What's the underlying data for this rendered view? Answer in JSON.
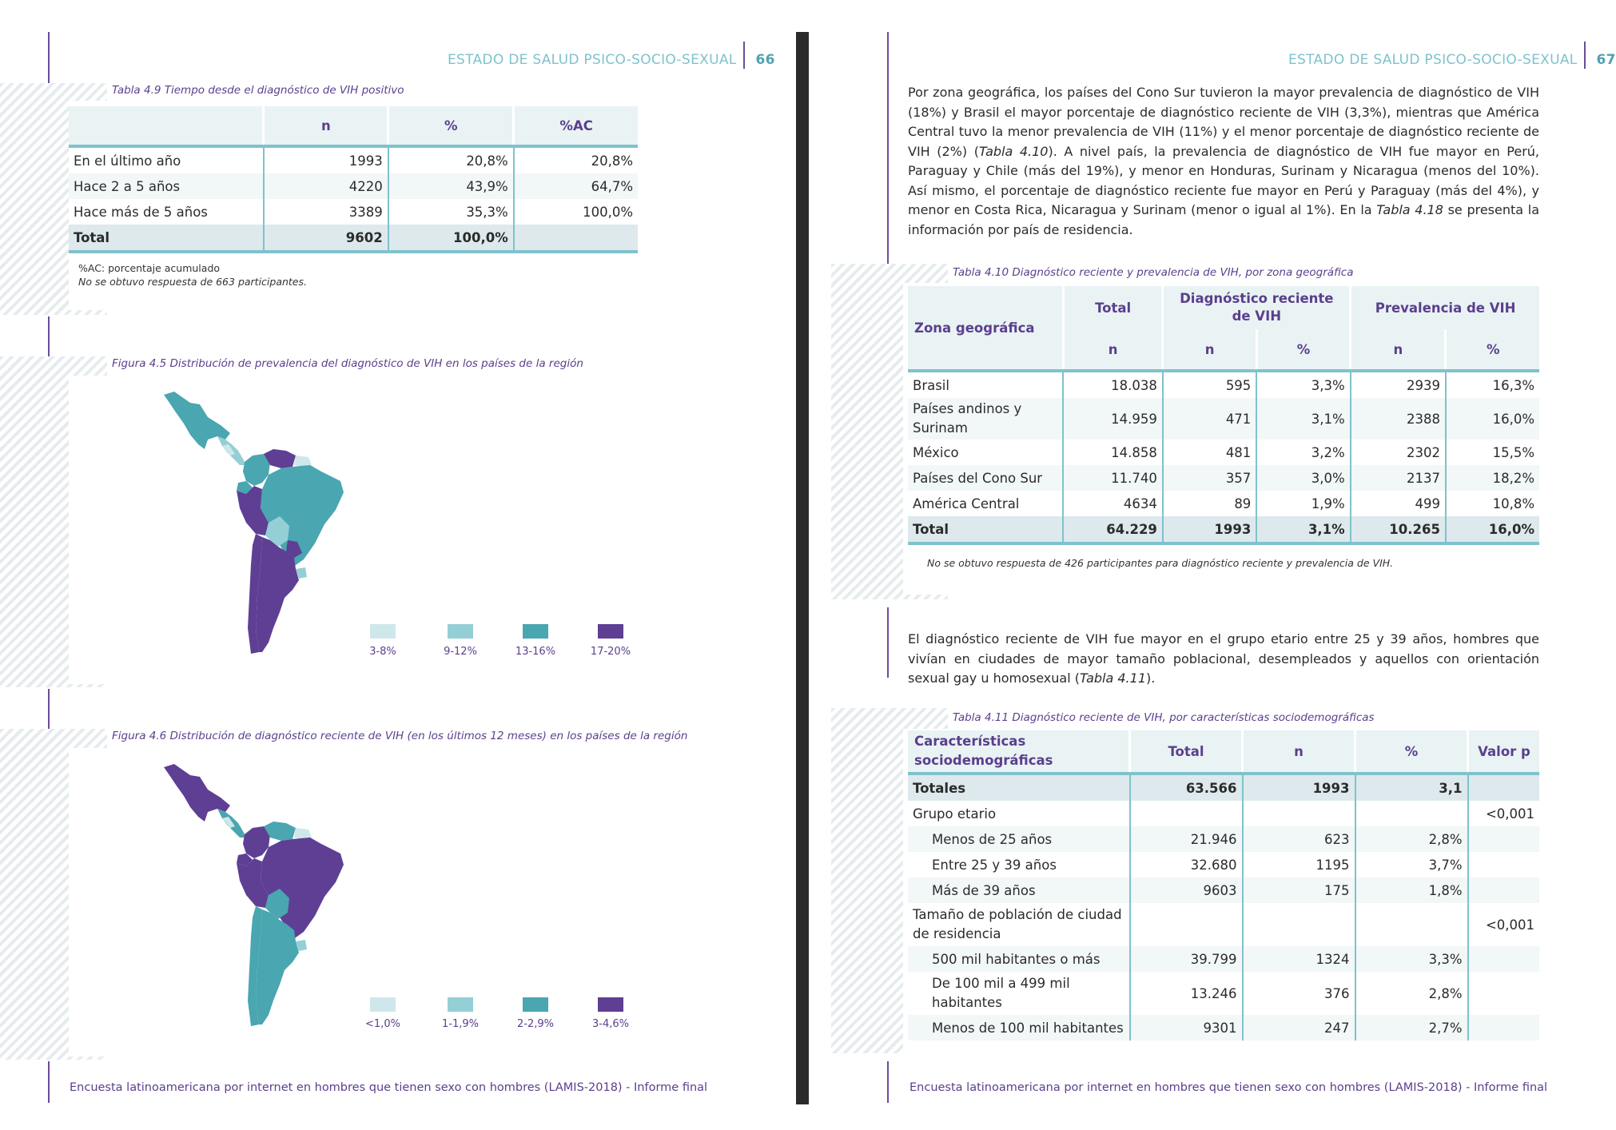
{
  "left_page": {
    "header": {
      "title": "ESTADO DE SALUD PSICO-SOCIO-SEXUAL",
      "page": "66"
    },
    "table49": {
      "caption": "Tabla 4.9 Tiempo desde el diagnóstico de VIH positivo",
      "headers": [
        "",
        "n",
        "%",
        "%AC"
      ],
      "rows": [
        [
          "En el último año",
          "1993",
          "20,8%",
          "20,8%"
        ],
        [
          "Hace 2 a 5 años",
          "4220",
          "43,9%",
          "64,7%"
        ],
        [
          "Hace más de 5 años",
          "3389",
          "35,3%",
          "100,0%"
        ]
      ],
      "total": [
        "Total",
        "9602",
        "100,0%",
        ""
      ],
      "note1": "%AC: porcentaje acumulado",
      "note2": "No se obtuvo respuesta de 663 participantes."
    },
    "fig45": {
      "caption": "Figura 4.5 Distribución de prevalencia del diagnóstico de VIH en los países de la región",
      "legend": [
        {
          "label": "3-8%",
          "color": "#cfe7ea"
        },
        {
          "label": "9-12%",
          "color": "#95cfd6"
        },
        {
          "label": "13-16%",
          "color": "#4aa6b0"
        },
        {
          "label": "17-20%",
          "color": "#5e3f94"
        }
      ]
    },
    "fig46": {
      "caption": "Figura 4.6 Distribución de diagnóstico reciente de VIH (en los últimos 12 meses) en los países de la región",
      "legend": [
        {
          "label": "<1,0%",
          "color": "#cfe7ea"
        },
        {
          "label": "1-1,9%",
          "color": "#95cfd6"
        },
        {
          "label": "2-2,9%",
          "color": "#4aa6b0"
        },
        {
          "label": "3-4,6%",
          "color": "#5e3f94"
        }
      ]
    },
    "footer": "Encuesta latinoamericana por internet en hombres que tienen sexo con hombres (LAMIS-2018) - Informe final"
  },
  "right_page": {
    "header": {
      "title": "ESTADO DE SALUD PSICO-SOCIO-SEXUAL",
      "page": "67"
    },
    "para1": {
      "a": "Por zona geográfica, los países del Cono Sur tuvieron la mayor prevalencia de diagnóstico de VIH (18%) y Brasil el mayor porcentaje de diagnóstico reciente de VIH (3,3%), mientras que América Central tuvo la menor prevalencia de VIH (11%) y el menor porcentaje de diagnóstico reciente de VIH (2%) (",
      "ref1": "Tabla 4.10",
      "b": "). A nivel país, la prevalencia de diagnóstico de VIH fue mayor en Perú, Paraguay y Chile (más del 19%), y menor en Honduras, Surinam y Nicaragua (menos del 10%). Así mismo, el porcentaje de diagnóstico reciente fue mayor en Perú y Paraguay (más del 4%), y menor en Costa Rica, Nicaragua y Surinam (menor o igual al 1%). En la ",
      "ref2": "Tabla 4.18",
      "c": " se presenta la información por país de residencia."
    },
    "table410": {
      "caption": "Tabla 4.10 Diagnóstico reciente y prevalencia de VIH, por zona geográfica",
      "h_zona": "Zona geográfica",
      "h_total": "Total",
      "h_diag": "Diagnóstico reciente de VIH",
      "h_prev": "Prevalencia de VIH",
      "h_n": "n",
      "h_pct": "%",
      "rows": [
        [
          "Brasil",
          "18.038",
          "595",
          "3,3%",
          "2939",
          "16,3%"
        ],
        [
          "Países andinos y Surinam",
          "14.959",
          "471",
          "3,1%",
          "2388",
          "16,0%"
        ],
        [
          "México",
          "14.858",
          "481",
          "3,2%",
          "2302",
          "15,5%"
        ],
        [
          "Países del Cono Sur",
          "11.740",
          "357",
          "3,0%",
          "2137",
          "18,2%"
        ],
        [
          "América Central",
          "4634",
          "89",
          "1,9%",
          "499",
          "10,8%"
        ]
      ],
      "total": [
        "Total",
        "64.229",
        "1993",
        "3,1%",
        "10.265",
        "16,0%"
      ],
      "note": "No se obtuvo respuesta de 426 participantes para diagnóstico reciente y prevalencia de VIH."
    },
    "para2": {
      "a": "El diagnóstico reciente de VIH fue mayor en el grupo etario entre 25 y 39 años, hombres que vivían en ciudades de mayor tamaño poblacional, desempleados y aquellos con orientación sexual gay u homosexual (",
      "ref": "Tabla 4.11",
      "b": ")."
    },
    "table411": {
      "caption": "Tabla 4.11 Diagnóstico reciente de VIH, por características sociodemográficas",
      "headers": [
        "Características sociodemográficas",
        "Total",
        "n",
        "%",
        "Valor p"
      ],
      "totales": [
        "Totales",
        "63.566",
        "1993",
        "3,1",
        ""
      ],
      "rows": [
        {
          "label": "Grupo etario",
          "indent": false,
          "total": "",
          "n": "",
          "pct": "",
          "p": "<0,001"
        },
        {
          "label": "Menos de 25 años",
          "indent": true,
          "total": "21.946",
          "n": "623",
          "pct": "2,8%",
          "p": ""
        },
        {
          "label": "Entre 25 y 39 años",
          "indent": true,
          "total": "32.680",
          "n": "1195",
          "pct": "3,7%",
          "p": ""
        },
        {
          "label": "Más de 39 años",
          "indent": true,
          "total": "9603",
          "n": "175",
          "pct": "1,8%",
          "p": ""
        },
        {
          "label": "Tamaño de población de ciudad de residencia",
          "indent": false,
          "total": "",
          "n": "",
          "pct": "",
          "p": "<0,001"
        },
        {
          "label": "500 mil habitantes o más",
          "indent": true,
          "total": "39.799",
          "n": "1324",
          "pct": "3,3%",
          "p": ""
        },
        {
          "label": "De 100 mil a 499 mil habitantes",
          "indent": true,
          "total": "13.246",
          "n": "376",
          "pct": "2,8%",
          "p": ""
        },
        {
          "label": "Menos de 100 mil habitantes",
          "indent": true,
          "total": "9301",
          "n": "247",
          "pct": "2,7%",
          "p": ""
        }
      ]
    },
    "footer": "Encuesta latinoamericana por internet en hombres que tienen sexo con hombres (LAMIS-2018) - Informe final"
  }
}
